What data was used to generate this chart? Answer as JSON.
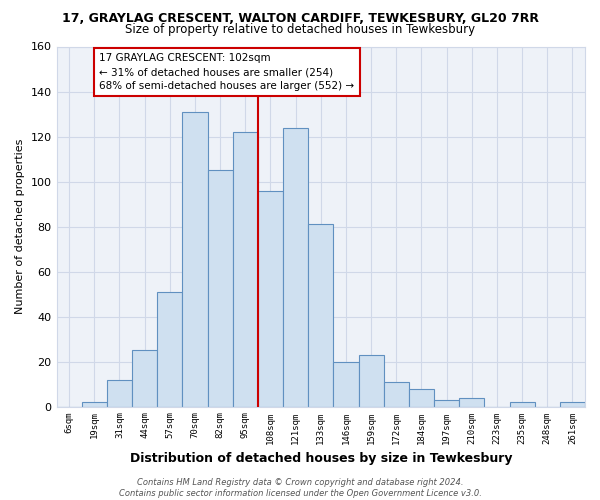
{
  "title": "17, GRAYLAG CRESCENT, WALTON CARDIFF, TEWKESBURY, GL20 7RR",
  "subtitle": "Size of property relative to detached houses in Tewkesbury",
  "xlabel": "Distribution of detached houses by size in Tewkesbury",
  "ylabel": "Number of detached properties",
  "bar_labels": [
    "6sqm",
    "19sqm",
    "31sqm",
    "44sqm",
    "57sqm",
    "70sqm",
    "82sqm",
    "95sqm",
    "108sqm",
    "121sqm",
    "133sqm",
    "146sqm",
    "159sqm",
    "172sqm",
    "184sqm",
    "197sqm",
    "210sqm",
    "223sqm",
    "235sqm",
    "248sqm",
    "261sqm"
  ],
  "bar_heights": [
    0,
    2,
    12,
    25,
    51,
    131,
    105,
    122,
    96,
    124,
    81,
    20,
    23,
    11,
    8,
    3,
    4,
    0,
    2,
    0,
    2
  ],
  "bar_color": "#cfe0f0",
  "bar_edge_color": "#6090c0",
  "vline_color": "#cc0000",
  "annotation_text": "17 GRAYLAG CRESCENT: 102sqm\n← 31% of detached houses are smaller (254)\n68% of semi-detached houses are larger (552) →",
  "annotation_box_color": "#ffffff",
  "annotation_box_edge": "#cc0000",
  "ylim": [
    0,
    160
  ],
  "yticks": [
    0,
    20,
    40,
    60,
    80,
    100,
    120,
    140,
    160
  ],
  "grid_color": "#d0d8e8",
  "bg_color": "#ffffff",
  "plot_bg_color": "#eef2f8",
  "footer": "Contains HM Land Registry data © Crown copyright and database right 2024.\nContains public sector information licensed under the Open Government Licence v3.0.",
  "title_fontsize": 9,
  "subtitle_fontsize": 8.5
}
